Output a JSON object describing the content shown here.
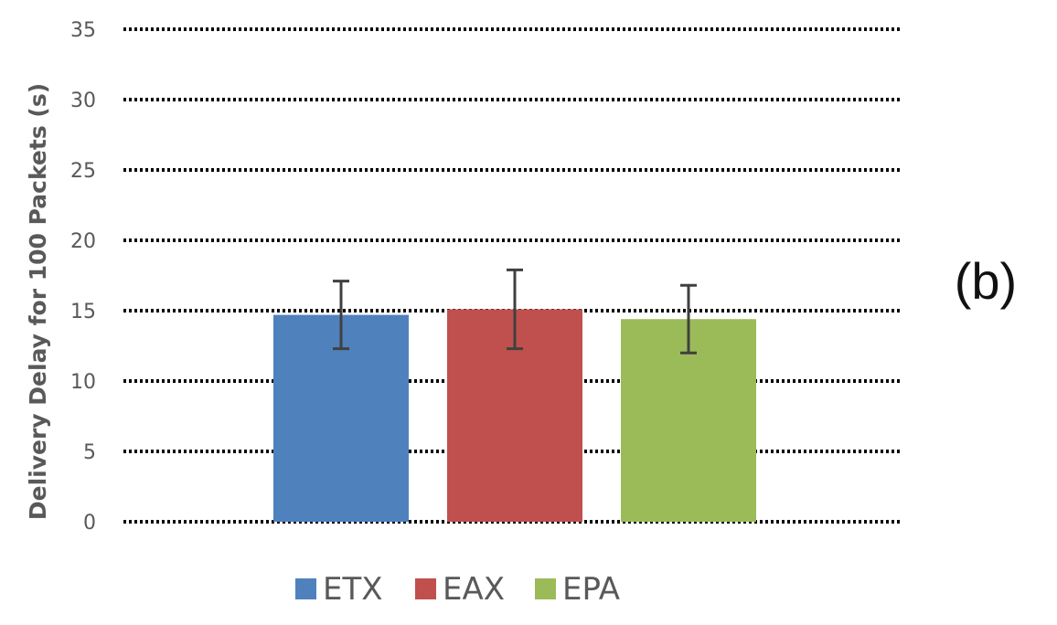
{
  "panel_label": "(b)",
  "chart_data": {
    "type": "bar",
    "categories": [
      ""
    ],
    "series": [
      {
        "name": "ETX",
        "values": [
          14.7
        ],
        "error": [
          2.4
        ],
        "color": "#4f81bd"
      },
      {
        "name": "EAX",
        "values": [
          15.1
        ],
        "error": [
          2.8
        ],
        "color": "#c0504d"
      },
      {
        "name": "EPA",
        "values": [
          14.4
        ],
        "error": [
          2.4
        ],
        "color": "#9bbb59"
      }
    ],
    "title": "",
    "xlabel": "",
    "ylabel": "Delivery Delay for 100 Packets (s)",
    "ylim": [
      0,
      35
    ],
    "yticks": [
      0,
      5,
      10,
      15,
      20,
      25,
      30,
      35
    ],
    "grid": true,
    "grid_style": "dotted",
    "legend_position": "bottom-center",
    "error_bar_color": "#404040"
  }
}
